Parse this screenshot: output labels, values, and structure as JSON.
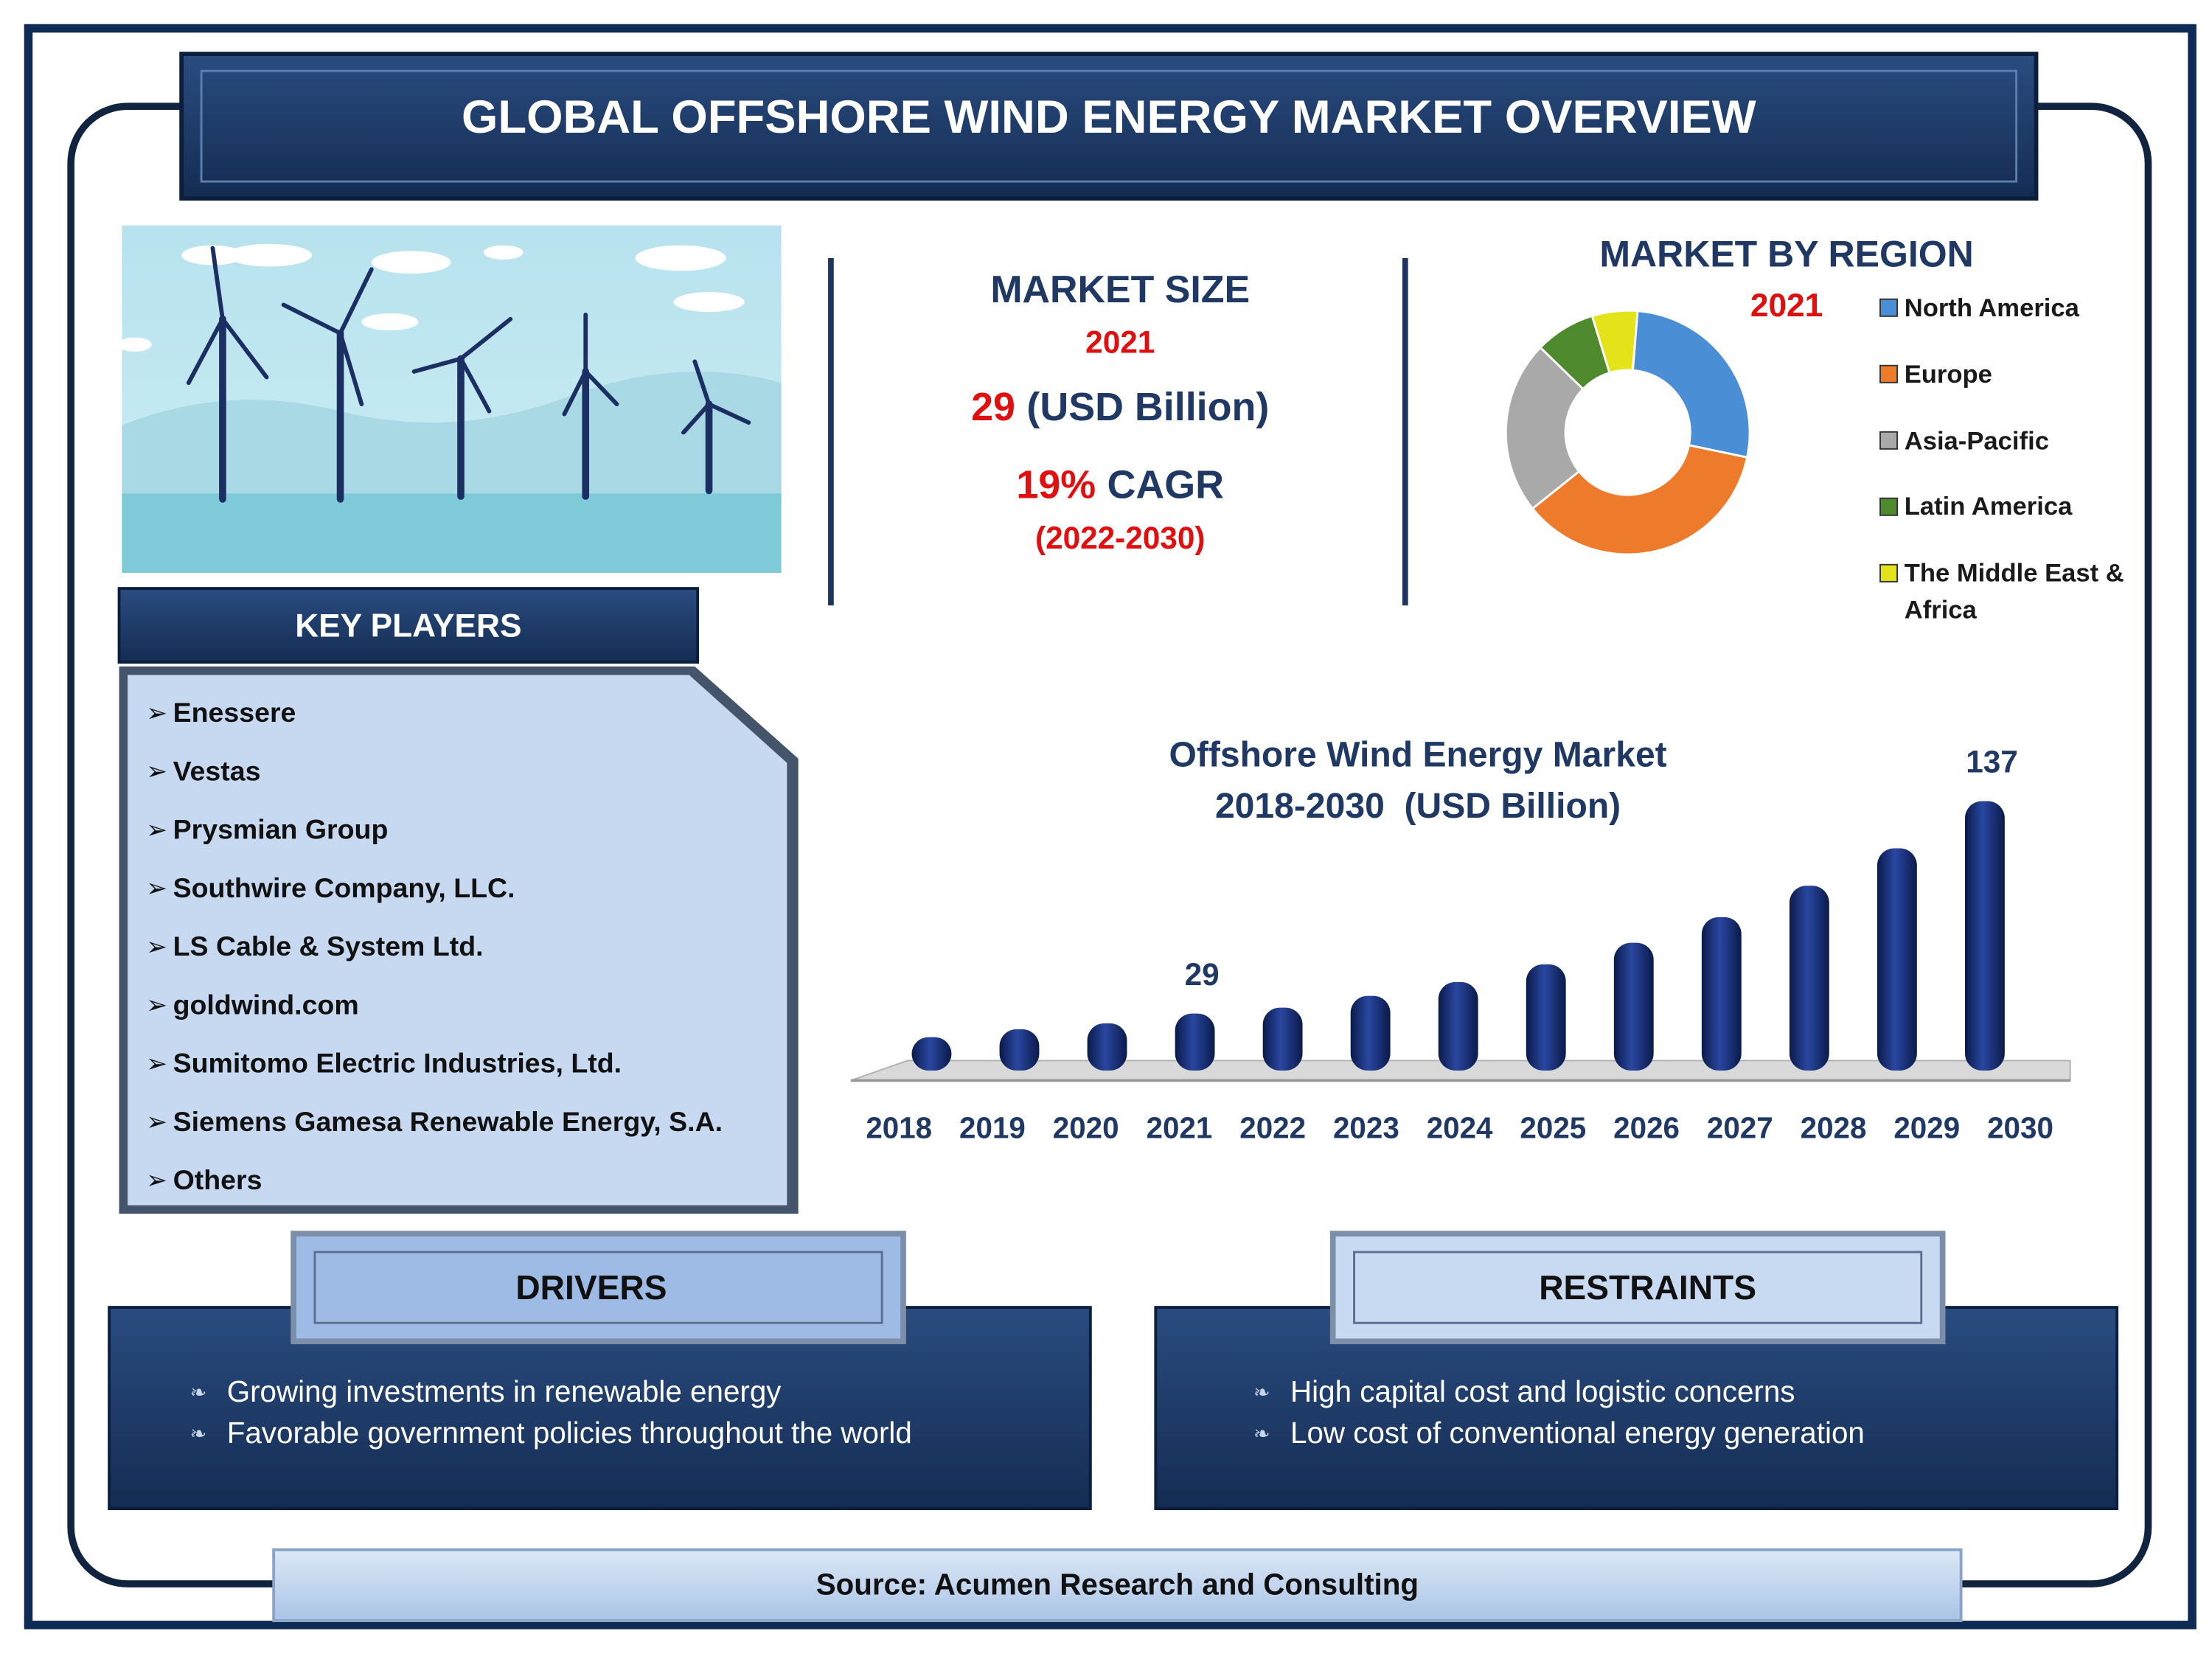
{
  "header": {
    "title": "GLOBAL OFFSHORE WIND ENERGY MARKET OVERVIEW"
  },
  "market_size": {
    "heading": "MARKET SIZE",
    "year": "2021",
    "value": "29",
    "unit": "(USD Billion)",
    "cagr": "19%",
    "cagr_label": "CAGR",
    "period": "(2022-2030)"
  },
  "key_players": {
    "title": "KEY PLAYERS",
    "items": [
      "Enessere",
      "Vestas",
      "Prysmian Group",
      "Southwire Company, LLC.",
      "LS Cable & System Ltd.",
      "goldwind.com",
      "Sumitomo Electric Industries, Ltd.",
      "Siemens Gamesa Renewable Energy, S.A.",
      "Others"
    ]
  },
  "drivers": {
    "title": "DRIVERS",
    "items": [
      "Growing investments in renewable energy",
      "Favorable government policies throughout the world"
    ]
  },
  "restraints": {
    "title": "RESTRAINTS",
    "items": [
      "High capital cost and logistic concerns",
      "Low cost of conventional energy generation"
    ]
  },
  "source": "Source: Acumen Research and Consulting",
  "chart_data": [
    {
      "type": "pie",
      "donut": true,
      "title": "MARKET BY REGION",
      "subtitle": "2021",
      "categories": [
        "North America",
        "Europe",
        "Asia-Pacific",
        "Latin America",
        "The Middle East & Africa"
      ],
      "values": [
        27,
        36,
        23,
        8,
        6
      ],
      "colors": [
        "#4a8fd6",
        "#ee7a2c",
        "#a9a9a9",
        "#4f8a2f",
        "#e3e31a"
      ],
      "legend": "right"
    },
    {
      "type": "bar",
      "title": "Offshore Wind Energy Market",
      "subtitle": "2018-2030  (USD Billion)",
      "categories": [
        "2018",
        "2019",
        "2020",
        "2021",
        "2022",
        "2023",
        "2024",
        "2025",
        "2026",
        "2027",
        "2028",
        "2029",
        "2030"
      ],
      "values": [
        17,
        21,
        24,
        29,
        32,
        38,
        45,
        54,
        65,
        78,
        94,
        113,
        137
      ],
      "value_labels": [
        null,
        null,
        null,
        "29",
        null,
        null,
        null,
        null,
        null,
        null,
        null,
        null,
        "137"
      ],
      "color": "#0f2566"
    }
  ]
}
